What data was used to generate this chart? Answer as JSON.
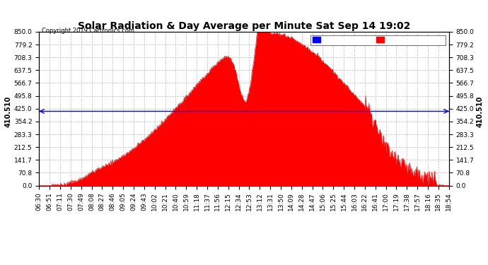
{
  "title": "Solar Radiation & Day Average per Minute Sat Sep 14 19:02",
  "copyright": "Copyright 2019 Cartronics.com",
  "median_value": 410.51,
  "y_max": 850.0,
  "y_min": 0.0,
  "y_ticks": [
    0.0,
    70.8,
    141.7,
    212.5,
    283.3,
    354.2,
    425.0,
    495.8,
    566.7,
    637.5,
    708.3,
    779.2,
    850.0
  ],
  "x_tick_labels": [
    "06:30",
    "06:51",
    "07:11",
    "07:30",
    "07:49",
    "08:08",
    "08:27",
    "08:46",
    "09:05",
    "09:24",
    "09:43",
    "10:02",
    "10:21",
    "10:40",
    "10:59",
    "11:18",
    "11:37",
    "11:56",
    "12:15",
    "12:34",
    "12:53",
    "13:12",
    "13:31",
    "13:50",
    "14:09",
    "14:28",
    "14:47",
    "15:06",
    "15:25",
    "15:44",
    "16:03",
    "16:22",
    "16:41",
    "17:00",
    "17:19",
    "17:38",
    "17:57",
    "18:16",
    "18:35",
    "18:54"
  ],
  "fill_color": "#ff0000",
  "median_line_color": "#0000ff",
  "legend_median_bg": "#0000ff",
  "legend_radiation_bg": "#ff0000",
  "bg_color": "#ffffff",
  "grid_color": "#aaaaaa",
  "title_fontsize": 10,
  "tick_fontsize": 6.5,
  "copyright_fontsize": 6
}
